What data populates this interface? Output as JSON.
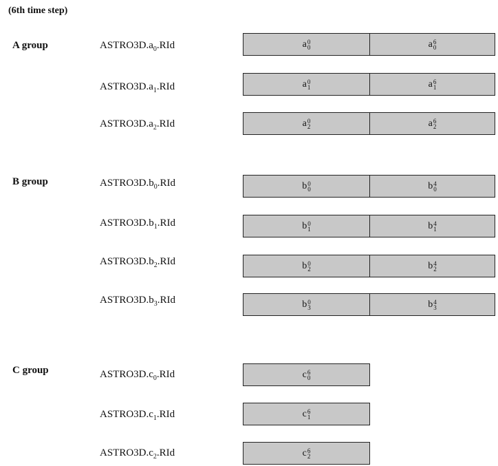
{
  "title": "(6th time step)",
  "groups": [
    {
      "label": "A group",
      "rows": [
        {
          "label_prefix": "ASTRO3D.a",
          "label_sub": "0",
          "label_suffix": ".RId",
          "cells": [
            {
              "base": "a",
              "sup": "0",
              "sub": "0"
            },
            {
              "base": "a",
              "sup": "6",
              "sub": "0"
            }
          ]
        },
        {
          "label_prefix": "ASTRO3D.a",
          "label_sub": "1",
          "label_suffix": ".RId",
          "cells": [
            {
              "base": "a",
              "sup": "0",
              "sub": "1"
            },
            {
              "base": "a",
              "sup": "6",
              "sub": "1"
            }
          ]
        },
        {
          "label_prefix": "ASTRO3D.a",
          "label_sub": "2",
          "label_suffix": ".RId",
          "cells": [
            {
              "base": "a",
              "sup": "0",
              "sub": "2"
            },
            {
              "base": "a",
              "sup": "6",
              "sub": "2"
            }
          ]
        }
      ]
    },
    {
      "label": "B group",
      "rows": [
        {
          "label_prefix": "ASTRO3D.b",
          "label_sub": "0",
          "label_suffix": ".RId",
          "cells": [
            {
              "base": "b",
              "sup": "0",
              "sub": "0"
            },
            {
              "base": "b",
              "sup": "4",
              "sub": "0"
            }
          ]
        },
        {
          "label_prefix": "ASTRO3D.b",
          "label_sub": "1",
          "label_suffix": ".RId",
          "cells": [
            {
              "base": "b",
              "sup": "0",
              "sub": "1"
            },
            {
              "base": "b",
              "sup": "4",
              "sub": "1"
            }
          ]
        },
        {
          "label_prefix": "ASTRO3D.b",
          "label_sub": "2",
          "label_suffix": ".RId",
          "cells": [
            {
              "base": "b",
              "sup": "0",
              "sub": "2"
            },
            {
              "base": "b",
              "sup": "4",
              "sub": "2"
            }
          ]
        },
        {
          "label_prefix": "ASTRO3D.b",
          "label_sub": "3",
          "label_suffix": ".RId",
          "cells": [
            {
              "base": "b",
              "sup": "0",
              "sub": "3"
            },
            {
              "base": "b",
              "sup": "4",
              "sub": "3"
            }
          ]
        }
      ]
    },
    {
      "label": "C group",
      "rows": [
        {
          "label_prefix": "ASTRO3D.c",
          "label_sub": "0",
          "label_suffix": ".RId",
          "cells": [
            {
              "base": "c",
              "sup": "6",
              "sub": "0"
            }
          ]
        },
        {
          "label_prefix": "ASTRO3D.c",
          "label_sub": "1",
          "label_suffix": ".RId",
          "cells": [
            {
              "base": "c",
              "sup": "6",
              "sub": "1"
            }
          ]
        },
        {
          "label_prefix": "ASTRO3D.c",
          "label_sub": "2",
          "label_suffix": ".RId",
          "cells": [
            {
              "base": "c",
              "sup": "6",
              "sub": "2"
            }
          ]
        }
      ]
    }
  ]
}
